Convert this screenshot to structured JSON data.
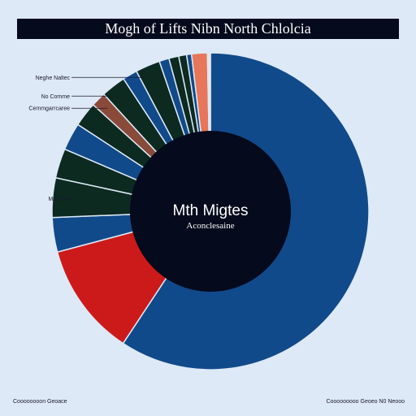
{
  "chart_data": {
    "type": "pie",
    "style": "donut",
    "title": "Mogh of Lifts Nibn North Chlolcia",
    "center_title": "Mth Migtes",
    "center_subtitle": "Aconclesaine",
    "slices": [
      {
        "label": "",
        "value": 59.0,
        "color": "#114a8a"
      },
      {
        "label": "",
        "value": 11.5,
        "color": "#cc1a1a"
      },
      {
        "label": "",
        "value": 3.5,
        "color": "#114a8a"
      },
      {
        "label": "Measino",
        "value": 4.0,
        "color": "#0c2a20"
      },
      {
        "label": "",
        "value": 3.0,
        "color": "#0c2a20"
      },
      {
        "label": "",
        "value": 2.8,
        "color": "#114a8a"
      },
      {
        "label": "",
        "value": 2.5,
        "color": "#0c2a20"
      },
      {
        "label": "Cemmgarrcaree",
        "value": 1.5,
        "color": "#8a4a3a"
      },
      {
        "label": "No Comme",
        "value": 2.5,
        "color": "#0c2a20"
      },
      {
        "label": "",
        "value": 1.5,
        "color": "#114a8a"
      },
      {
        "label": "Neghe Naltec",
        "value": 2.5,
        "color": "#0c2a20"
      },
      {
        "label": "",
        "value": 1.0,
        "color": "#114a8a"
      },
      {
        "label": "",
        "value": 1.0,
        "color": "#0c2a20"
      },
      {
        "label": "",
        "value": 0.8,
        "color": "#0c2a20"
      },
      {
        "label": "",
        "value": 0.5,
        "color": "#114a8a"
      },
      {
        "label": "",
        "value": 1.6,
        "color": "#e8765a"
      },
      {
        "label": "",
        "value": 0.3,
        "color": "#f0e0d8"
      }
    ]
  },
  "footer": {
    "left": "Coooooooon Geoace",
    "right": "Cooooooooo Geoeo N0 Neooo"
  }
}
